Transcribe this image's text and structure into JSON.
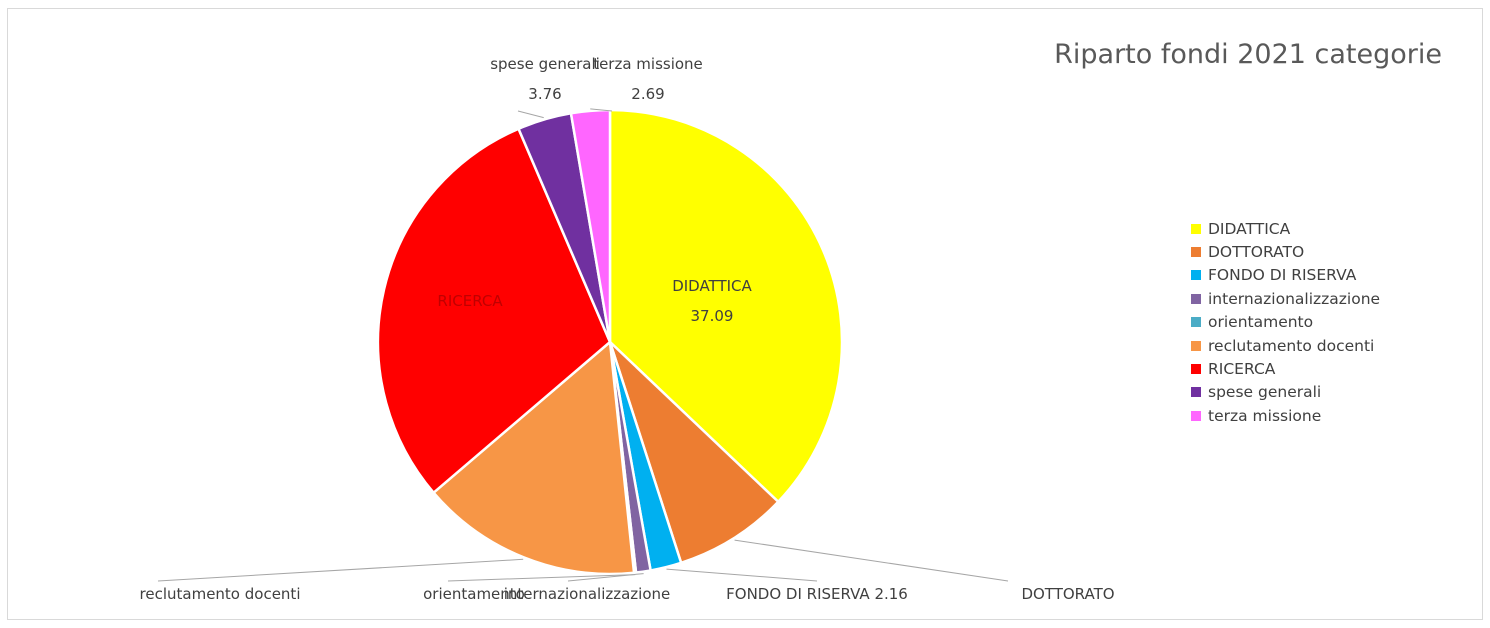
{
  "chart_data": {
    "type": "pie",
    "title": "Riparto fondi 2021 categorie",
    "legend_position": "right",
    "slices": [
      {
        "label": "DIDATTICA",
        "value": 37.09,
        "display": "37.09",
        "color": "#FFFF00"
      },
      {
        "label": "DOTTORATO",
        "value": 7.95,
        "display": "7.95",
        "color": "#ED7D31"
      },
      {
        "label": "FONDO DI RISERVA",
        "value": 2.16,
        "display": "2.16",
        "color": "#00B0F0"
      },
      {
        "label": "internazionalizzazione",
        "value": 1.01,
        "display": "1.01",
        "color": "#8064A2"
      },
      {
        "label": "orientamento",
        "value": 0.14,
        "display": "0.14",
        "color": "#4BACC6"
      },
      {
        "label": "reclutamento docenti",
        "value": 15.4,
        "display": "15.40",
        "color": "#F79646"
      },
      {
        "label": "RICERCA",
        "value": 29.8,
        "display": "",
        "color": "#FF0000"
      },
      {
        "label": "spese generali",
        "value": 3.76,
        "display": "3.76",
        "color": "#7030A0"
      },
      {
        "label": "terza missione",
        "value": 2.69,
        "display": "2.69",
        "color": "#FF66FF"
      }
    ]
  }
}
